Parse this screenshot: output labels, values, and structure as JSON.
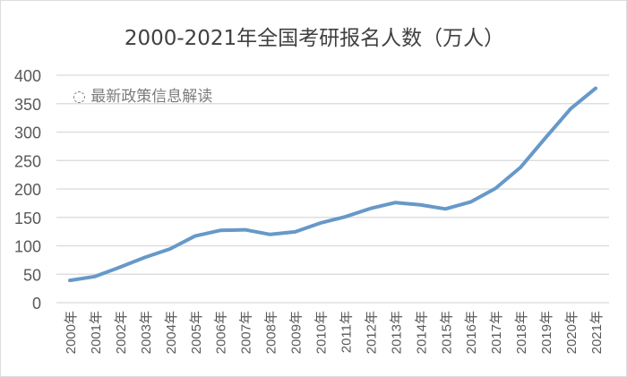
{
  "chart_data": {
    "type": "line",
    "title": "2000-2021年全国考研报名人数（万人）",
    "categories": [
      "2000年",
      "2001年",
      "2002年",
      "2003年",
      "2004年",
      "2005年",
      "2006年",
      "2007年",
      "2008年",
      "2009年",
      "2010年",
      "2011年",
      "2012年",
      "2013年",
      "2014年",
      "2015年",
      "2016年",
      "2017年",
      "2018年",
      "2019年",
      "2020年",
      "2021年"
    ],
    "series": [
      {
        "values": [
          39.2,
          46,
          62.4,
          79.7,
          94.5,
          117.2,
          127.1,
          128.2,
          120,
          124.6,
          140,
          151.1,
          165.6,
          176,
          172,
          164.9,
          177,
          201,
          238,
          290,
          341,
          377
        ]
      }
    ],
    "ylim": [
      0,
      400
    ],
    "yticks": [
      0,
      50,
      100,
      150,
      200,
      250,
      300,
      350,
      400
    ],
    "grid": true,
    "line_color": "#6699C8",
    "grid_color": "#D9D9D9"
  },
  "watermark": "最新政策信息解读"
}
